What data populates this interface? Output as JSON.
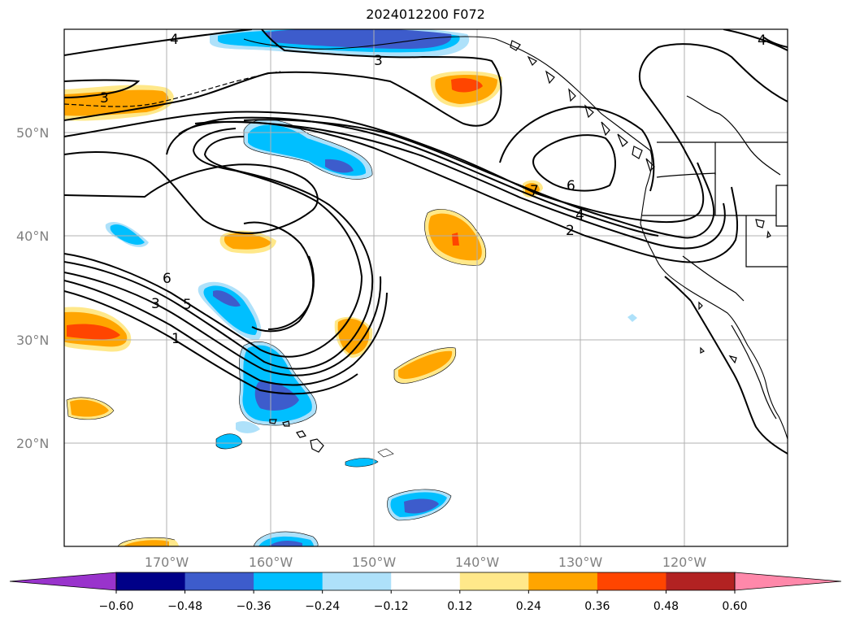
{
  "title": "2024012200 F072",
  "lon_ticks": [
    "170°W",
    "160°W",
    "150°W",
    "140°W",
    "130°W",
    "120°W"
  ],
  "lat_ticks": [
    "50°N",
    "40°N",
    "30°N",
    "20°N"
  ],
  "colorbar": {
    "ticks": [
      "−0.60",
      "−0.48",
      "−0.36",
      "−0.24",
      "−0.12",
      "0.12",
      "0.24",
      "0.36",
      "0.48",
      "0.60"
    ],
    "colors": [
      "#9933cc",
      "#000088",
      "#3d5ccc",
      "#00bfff",
      "#aee1fa",
      "#ffffff",
      "#ffe88a",
      "#ffa500",
      "#ff4500",
      "#b22222",
      "#ff88aa"
    ]
  },
  "contour_labels": [
    "4",
    "3",
    "3",
    "6",
    "4",
    "2",
    "6",
    "3",
    "5",
    "1",
    "4",
    "7"
  ]
}
